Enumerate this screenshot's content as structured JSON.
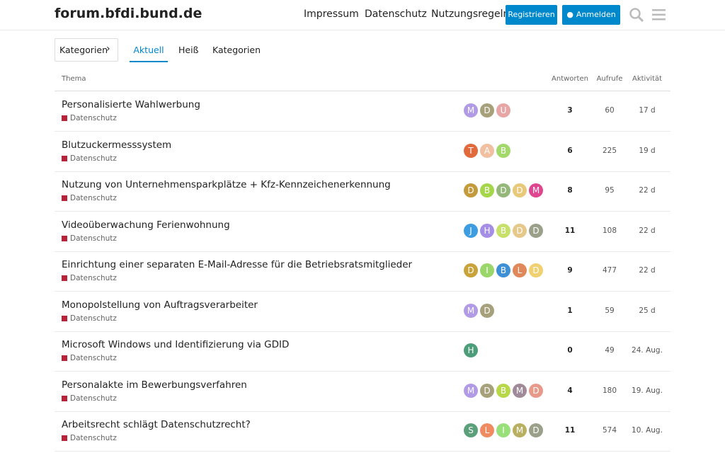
{
  "header": {
    "site_title": "forum.bfdi.bund.de",
    "nav": [
      "Impressum",
      "Datenschutz",
      "Nutzungsregeln"
    ],
    "register": "Registrieren",
    "login": "Anmelden"
  },
  "navigation": {
    "categories_dropdown": "Kategorien",
    "tabs": [
      "Aktuell",
      "Heiß",
      "Kategorien"
    ]
  },
  "table": {
    "columns": [
      "Thema",
      "Antworten",
      "Aufrufe",
      "Aktivität"
    ],
    "topics": [
      {
        "title": "Personalisierte Wahlwerbung",
        "category": "Datenschutz",
        "avatars": [
          {
            "letter": "M",
            "color": "#b19ae6"
          },
          {
            "letter": "D",
            "color": "#a6a17b"
          },
          {
            "letter": "U",
            "color": "#e8a5a5"
          }
        ],
        "replies": 3,
        "views": 60,
        "activity": "17 d"
      },
      {
        "title": "Blutzuckermesssystem",
        "category": "Datenschutz",
        "avatars": [
          {
            "letter": "T",
            "color": "#e06a3c"
          },
          {
            "letter": "A",
            "color": "#f0c0a0"
          },
          {
            "letter": "B",
            "color": "#a3d86a"
          }
        ],
        "replies": 6,
        "views": 225,
        "activity": "19 d"
      },
      {
        "title": "Nutzung von Unternehmensparkplätze + Kfz-Kennzeichenerkennung",
        "category": "Datenschutz",
        "avatars": [
          {
            "letter": "D",
            "color": "#c49a3c"
          },
          {
            "letter": "B",
            "color": "#a6d64a"
          },
          {
            "letter": "D",
            "color": "#95b87a"
          },
          {
            "letter": "D",
            "color": "#e8c97a"
          },
          {
            "letter": "M",
            "color": "#e04590"
          }
        ],
        "replies": 8,
        "views": 95,
        "activity": "22 d"
      },
      {
        "title": "Videoüberwachung Ferienwohnung",
        "category": "Datenschutz",
        "avatars": [
          {
            "letter": "J",
            "color": "#3d9de0"
          },
          {
            "letter": "H",
            "color": "#a58ee6"
          },
          {
            "letter": "B",
            "color": "#c6e06a"
          },
          {
            "letter": "D",
            "color": "#e6c98a"
          },
          {
            "letter": "D",
            "color": "#9aa08a"
          }
        ],
        "replies": 11,
        "views": 108,
        "activity": "22 d"
      },
      {
        "title": "Einrichtung einer separaten E-Mail-Adresse für die Betriebsratsmitglieder",
        "category": "Datenschutz",
        "avatars": [
          {
            "letter": "D",
            "color": "#c9a33a"
          },
          {
            "letter": "I",
            "color": "#9ad66a"
          },
          {
            "letter": "B",
            "color": "#3d8fd6"
          },
          {
            "letter": "L",
            "color": "#e0885a"
          },
          {
            "letter": "D",
            "color": "#f0d070"
          }
        ],
        "replies": 9,
        "views": 477,
        "activity": "22 d"
      },
      {
        "title": "Monopolstellung von Auftragsverarbeiter",
        "category": "Datenschutz",
        "avatars": [
          {
            "letter": "M",
            "color": "#b19ae6"
          },
          {
            "letter": "D",
            "color": "#a6a17b"
          }
        ],
        "replies": 1,
        "views": 59,
        "activity": "25 d"
      },
      {
        "title": "Microsoft Windows und Identifizierung via GDID",
        "category": "Datenschutz",
        "avatars": [
          {
            "letter": "H",
            "color": "#4e9d7a"
          }
        ],
        "replies": 0,
        "views": 49,
        "activity": "24. Aug."
      },
      {
        "title": "Personalakte im Bewerbungsverfahren",
        "category": "Datenschutz",
        "avatars": [
          {
            "letter": "M",
            "color": "#b19ae6"
          },
          {
            "letter": "D",
            "color": "#a6a17b"
          },
          {
            "letter": "B",
            "color": "#b8d84a"
          },
          {
            "letter": "M",
            "color": "#a08a9a"
          },
          {
            "letter": "D",
            "color": "#e89a8a"
          }
        ],
        "replies": 4,
        "views": 180,
        "activity": "19. Aug."
      },
      {
        "title": "Arbeitsrecht schlägt Datenschutzrecht?",
        "category": "Datenschutz",
        "avatars": [
          {
            "letter": "S",
            "color": "#5aa07a"
          },
          {
            "letter": "L",
            "color": "#f08a60"
          },
          {
            "letter": "I",
            "color": "#9ae07a"
          },
          {
            "letter": "M",
            "color": "#b8b060"
          },
          {
            "letter": "D",
            "color": "#9aa08a"
          }
        ],
        "replies": 11,
        "views": 574,
        "activity": "10. Aug."
      }
    ]
  }
}
